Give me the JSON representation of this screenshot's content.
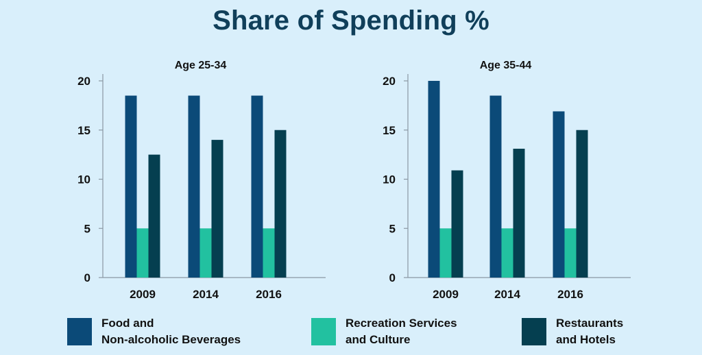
{
  "title": "Share of Spending %",
  "colors": {
    "background": "#d9effb",
    "food": "#0b4a78",
    "recreation": "#22c1a0",
    "restaurants": "#053f50"
  },
  "legend": [
    {
      "line1": "Food and",
      "line2": "Non-alcoholic Beverages",
      "color": "#0b4a78"
    },
    {
      "line1": "Recreation Services",
      "line2": "and Culture",
      "color": "#22c1a0"
    },
    {
      "line1": "Restaurants",
      "line2": "and Hotels",
      "color": "#053f50"
    }
  ],
  "chart_data": [
    {
      "type": "bar",
      "title": "Age 25-34",
      "categories": [
        "2009",
        "2014",
        "2016"
      ],
      "ylim": [
        0,
        20
      ],
      "yticks": [
        "0",
        "5",
        "10",
        "15",
        "20"
      ],
      "series": [
        {
          "name": "Food and Non-alcoholic Beverages",
          "values": [
            18.5,
            18.5,
            18.5
          ]
        },
        {
          "name": "Recreation Services and Culture",
          "values": [
            5,
            5,
            5
          ]
        },
        {
          "name": "Restaurants and Hotels",
          "values": [
            12.5,
            14,
            15
          ]
        }
      ],
      "grid": false,
      "legend_position": "bottom"
    },
    {
      "type": "bar",
      "title": "Age 35-44",
      "categories": [
        "2009",
        "2014",
        "2016"
      ],
      "ylim": [
        0,
        20
      ],
      "yticks": [
        "0",
        "5",
        "10",
        "15",
        "20"
      ],
      "series": [
        {
          "name": "Food and Non-alcoholic Beverages",
          "values": [
            20,
            18.5,
            16.9
          ]
        },
        {
          "name": "Recreation Services and Culture",
          "values": [
            5,
            5,
            5
          ]
        },
        {
          "name": "Restaurants and Hotels",
          "values": [
            10.9,
            13.1,
            15
          ]
        }
      ],
      "grid": false,
      "legend_position": "bottom"
    }
  ]
}
